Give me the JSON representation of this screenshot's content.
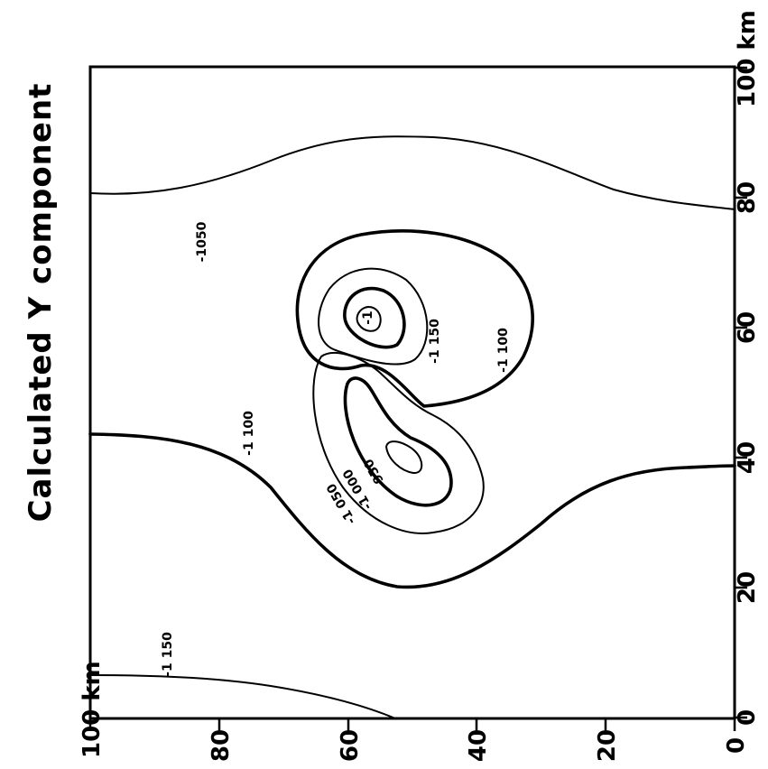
{
  "title": "Calculated   Y   component",
  "axes": {
    "vertical_ticks": [
      "0",
      "20",
      "40",
      "60",
      "80",
      "100 km"
    ],
    "horizontal_ticks": [
      "0",
      "20",
      "40",
      "60",
      "80",
      "100 km"
    ]
  },
  "contour_labels": {
    "c1": "-1050",
    "c2": "-1 100",
    "c3": "-1 150",
    "c4": "-1 100",
    "c5": "-1 150",
    "c6": "-1",
    "c7": "950",
    "c8": "-1 000",
    "c9": "-1 050"
  },
  "colors": {
    "ink": "#000000",
    "paper": "#ffffff"
  }
}
